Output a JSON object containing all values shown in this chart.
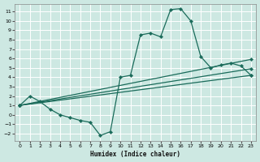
{
  "xlabel": "Humidex (Indice chaleur)",
  "bg_color": "#cde8e2",
  "grid_color": "#b8d8d0",
  "line_color": "#1a6b5a",
  "xlim": [
    -0.5,
    23.5
  ],
  "ylim": [
    -2.8,
    11.8
  ],
  "xticks": [
    0,
    1,
    2,
    3,
    4,
    5,
    6,
    7,
    8,
    9,
    10,
    11,
    12,
    13,
    14,
    15,
    16,
    17,
    18,
    19,
    20,
    21,
    22,
    23
  ],
  "yticks": [
    -2,
    -1,
    0,
    1,
    2,
    3,
    4,
    5,
    6,
    7,
    8,
    9,
    10,
    11
  ],
  "series": [
    {
      "x": [
        0,
        1,
        2,
        3,
        4,
        5,
        6,
        7,
        8,
        9,
        10,
        11,
        12,
        13,
        14,
        15,
        16,
        17,
        18,
        19,
        20,
        21,
        22,
        23
      ],
      "y": [
        1.0,
        2.0,
        1.4,
        0.6,
        0.0,
        -0.3,
        -0.6,
        -0.8,
        -2.2,
        -1.8,
        4.0,
        4.2,
        8.5,
        8.7,
        8.3,
        11.2,
        11.3,
        10.0,
        6.2,
        5.0,
        5.3,
        5.5,
        5.2,
        4.2
      ]
    },
    {
      "x": [
        0,
        23
      ],
      "y": [
        1.0,
        5.9
      ]
    },
    {
      "x": [
        0,
        23
      ],
      "y": [
        1.0,
        4.9
      ]
    },
    {
      "x": [
        0,
        23
      ],
      "y": [
        1.0,
        4.2
      ]
    }
  ]
}
